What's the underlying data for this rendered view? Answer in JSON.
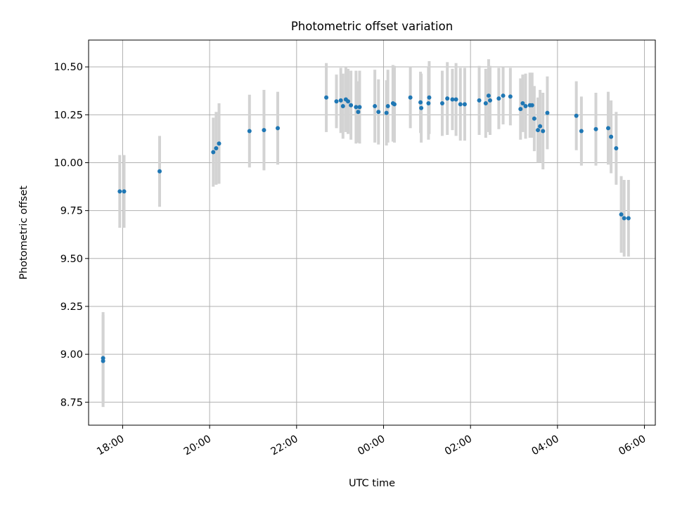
{
  "chart_data": {
    "type": "scatter",
    "title": "Photometric offset variation",
    "xlabel": "UTC time",
    "ylabel": "Photometric offset",
    "grid": true,
    "legend": "none",
    "x_axis_type": "time",
    "xlim": [
      "17:13",
      "06:15"
    ],
    "ylim": [
      8.63,
      10.64
    ],
    "x_ticks": [
      "18:00",
      "20:00",
      "22:00",
      "00:00",
      "02:00",
      "04:00",
      "06:00"
    ],
    "y_ticks": [
      "8.75",
      "9.00",
      "9.25",
      "9.50",
      "9.75",
      "10.00",
      "10.25",
      "10.50"
    ],
    "colors": {
      "points": "#1f77b4",
      "error_bars": "#d3d3d3",
      "grid": "#b0b0b0"
    },
    "series": [
      {
        "x": [
          "17:33",
          "17:33",
          "17:56",
          "18:02",
          "18:51",
          "20:05",
          "20:09",
          "20:13",
          "20:55",
          "21:15",
          "21:34",
          "22:41",
          "22:55",
          "23:01",
          "23:04",
          "23:08",
          "23:11",
          "23:15",
          "23:22",
          "23:25",
          "23:27",
          "23:48",
          "23:53",
          "24:04",
          "24:06",
          "24:13",
          "24:15",
          "24:37",
          "24:51",
          "24:52",
          "25:02",
          "25:03",
          "25:21",
          "25:28",
          "25:35",
          "25:40",
          "25:46",
          "25:52",
          "26:12",
          "26:21",
          "26:25",
          "26:27",
          "26:39",
          "26:45",
          "26:55",
          "27:09",
          "27:12",
          "27:16",
          "27:22",
          "27:25",
          "27:28",
          "27:33",
          "27:36",
          "27:40",
          "27:46",
          "28:26",
          "28:33",
          "28:53",
          "29:10",
          "29:14",
          "29:21",
          "29:28",
          "29:32",
          "29:38"
        ],
        "y": [
          8.98,
          8.965,
          9.85,
          9.85,
          9.955,
          10.055,
          10.075,
          10.1,
          10.165,
          10.17,
          10.18,
          10.34,
          10.32,
          10.325,
          10.295,
          10.33,
          10.32,
          10.3,
          10.29,
          10.265,
          10.29,
          10.295,
          10.265,
          10.26,
          10.295,
          10.31,
          10.305,
          10.34,
          10.315,
          10.285,
          10.31,
          10.34,
          10.31,
          10.335,
          10.33,
          10.33,
          10.305,
          10.305,
          10.325,
          10.31,
          10.35,
          10.325,
          10.335,
          10.35,
          10.345,
          10.28,
          10.31,
          10.295,
          10.3,
          10.3,
          10.23,
          10.17,
          10.19,
          10.165,
          10.26,
          10.245,
          10.165,
          10.175,
          10.18,
          10.135,
          10.075,
          9.73,
          9.71,
          9.71
        ],
        "err": [
          0.24,
          0.24,
          0.19,
          0.19,
          0.185,
          0.18,
          0.19,
          0.21,
          0.19,
          0.21,
          0.19,
          0.18,
          0.14,
          0.17,
          0.17,
          0.17,
          0.17,
          0.18,
          0.19,
          0.16,
          0.19,
          0.19,
          0.17,
          0.17,
          0.19,
          0.2,
          0.2,
          0.16,
          0.16,
          0.18,
          0.19,
          0.19,
          0.17,
          0.19,
          0.16,
          0.19,
          0.19,
          0.19,
          0.18,
          0.18,
          0.19,
          0.18,
          0.16,
          0.15,
          0.15,
          0.16,
          0.15,
          0.17,
          0.17,
          0.17,
          0.17,
          0.17,
          0.19,
          0.2,
          0.19,
          0.18,
          0.18,
          0.19,
          0.19,
          0.19,
          0.19,
          0.2,
          0.2,
          0.2
        ]
      }
    ]
  }
}
